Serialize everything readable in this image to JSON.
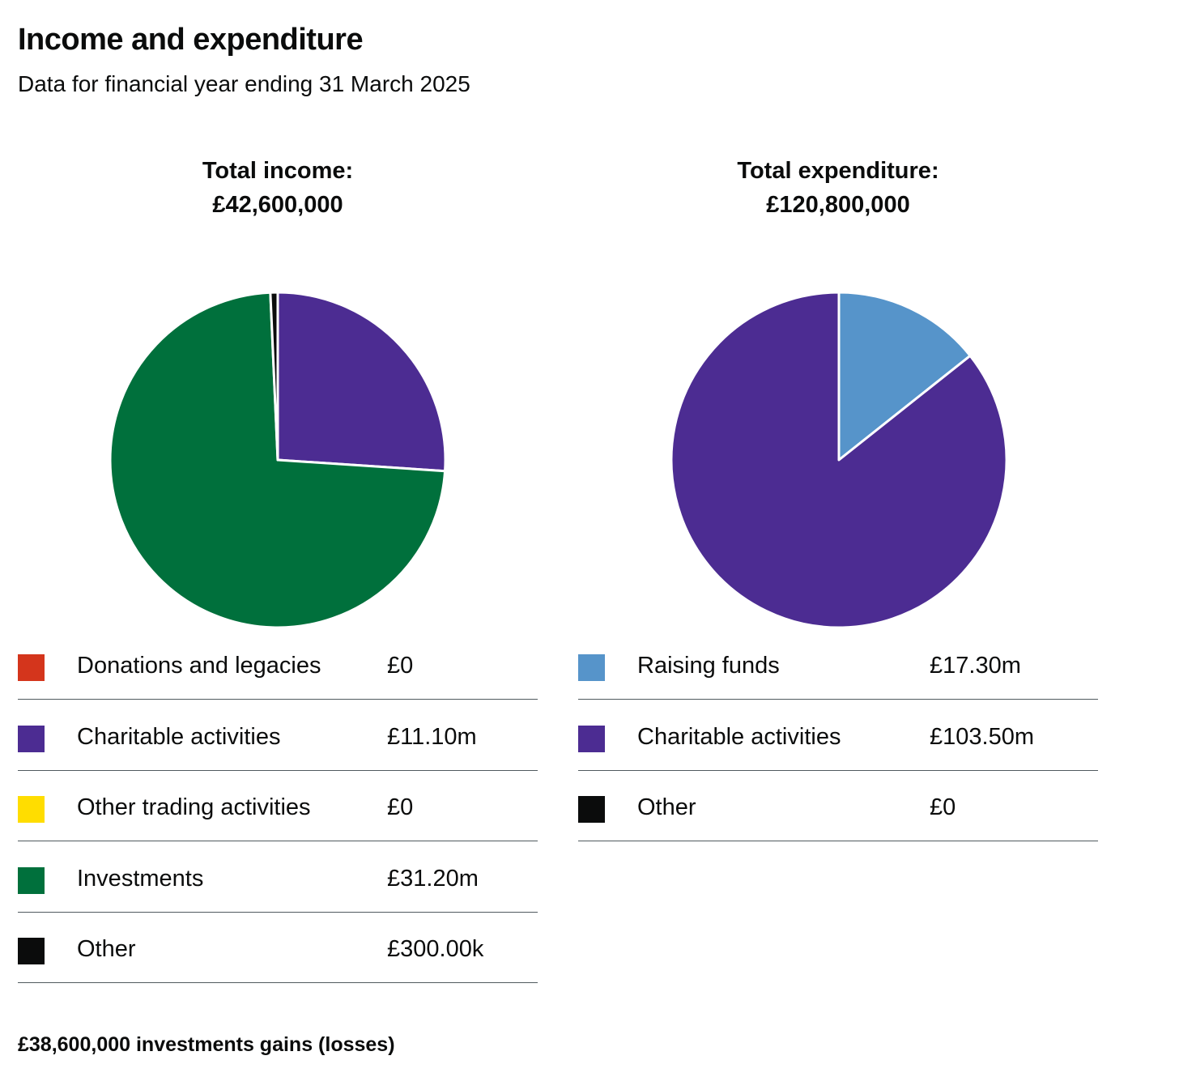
{
  "header": {
    "title": "Income and expenditure",
    "subtitle": "Data for financial year ending 31 March 2025"
  },
  "footnote": "£38,600,000 investments gains (losses)",
  "chart_data": [
    {
      "type": "pie",
      "title_line1": "Total income:",
      "title_line2": "£42,600,000",
      "categories": [
        "Donations and legacies",
        "Charitable activities",
        "Other trading activities",
        "Investments",
        "Other"
      ],
      "values": [
        0,
        11100000,
        0,
        31200000,
        300000
      ],
      "value_labels": [
        "£0",
        "£11.10m",
        "£0",
        "£31.20m",
        "£300.00k"
      ],
      "colors": [
        "#d4351c",
        "#4c2c92",
        "#ffdd00",
        "#00703c",
        "#0b0c0c"
      ]
    },
    {
      "type": "pie",
      "title_line1": "Total expenditure:",
      "title_line2": "£120,800,000",
      "categories": [
        "Raising funds",
        "Charitable activities",
        "Other"
      ],
      "values": [
        17300000,
        103500000,
        0
      ],
      "value_labels": [
        "£17.30m",
        "£103.50m",
        "£0"
      ],
      "colors": [
        "#5694ca",
        "#4c2c92",
        "#0b0c0c"
      ]
    }
  ]
}
